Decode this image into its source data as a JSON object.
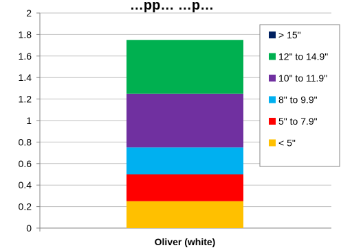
{
  "chart_data": {
    "type": "bar",
    "stacked": true,
    "title": "…pp… …p…",
    "categories": [
      "Oliver (white)"
    ],
    "series": [
      {
        "name": "< 5\"",
        "values": [
          0.25
        ],
        "color": "#FFC000"
      },
      {
        "name": "5\" to 7.9\"",
        "values": [
          0.25
        ],
        "color": "#FF0000"
      },
      {
        "name": "8\" to 9.9\"",
        "values": [
          0.25
        ],
        "color": "#00B0F0"
      },
      {
        "name": "10\" to 11.9\"",
        "values": [
          0.5
        ],
        "color": "#7030A0"
      },
      {
        "name": "12\" to 14.9\"",
        "values": [
          0.5
        ],
        "color": "#00B050"
      },
      {
        "name": "> 15\"",
        "values": [
          0
        ],
        "color": "#002060"
      }
    ],
    "yticks": [
      "0",
      "0.2",
      "0.4",
      "0.6",
      "0.8",
      "1",
      "1.2",
      "1.4",
      "1.6",
      "1.8",
      "2"
    ],
    "ylim": [
      0,
      2
    ],
    "grid": true,
    "legend_position": "right",
    "legend_order": [
      "> 15\"",
      "12\" to 14.9\"",
      "10\" to 11.9\"",
      "8\" to 9.9\"",
      "5\" to 7.9\"",
      "< 5\""
    ]
  }
}
